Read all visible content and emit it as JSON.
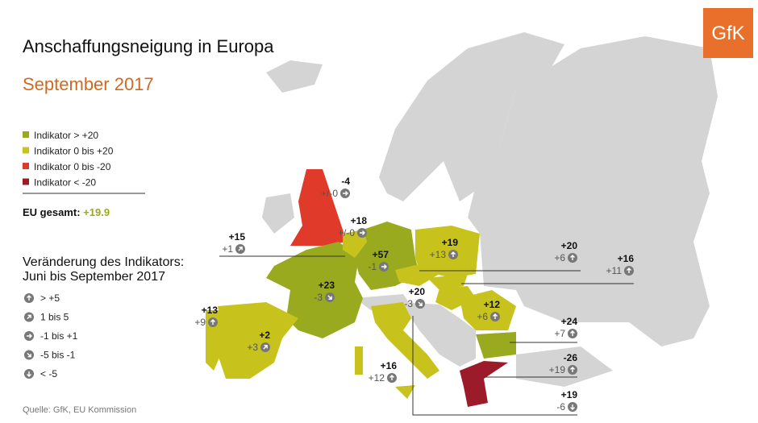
{
  "header": {
    "title": "Anschaffungsneigung in Europa",
    "subtitle": "September 2017",
    "logo": "GfK"
  },
  "legend": [
    "Indikator > +20",
    "Indikator 0 bis +20",
    "Indikator 0 bis -20",
    "Indikator < -20"
  ],
  "eu_total": {
    "label": "EU gesamt:",
    "value": "+19.9"
  },
  "change_legend": {
    "title_lines": [
      "Veränderung des Indikators:",
      "Juni bis September 2017"
    ],
    "items": [
      "> +5",
      "1 bis 5",
      "-1 bis +1",
      "-5 bis -1",
      "< -5"
    ]
  },
  "countries": [
    {
      "value": "-4",
      "change": "+/-0"
    },
    {
      "value": "+18",
      "change": "+/-0"
    },
    {
      "value": "+15",
      "change": "+1"
    },
    {
      "value": "+57",
      "change": "-1"
    },
    {
      "value": "+19",
      "change": "+13"
    },
    {
      "value": "+20",
      "change": "+6"
    },
    {
      "value": "+16",
      "change": "+11"
    },
    {
      "value": "+23",
      "change": "-3"
    },
    {
      "value": "+20",
      "change": "-3"
    },
    {
      "value": "+12",
      "change": "+6"
    },
    {
      "value": "+13",
      "change": "+9"
    },
    {
      "value": "+2",
      "change": "+3"
    },
    {
      "value": "+24",
      "change": "+7"
    },
    {
      "value": "+16",
      "change": "+12"
    },
    {
      "value": "-26",
      "change": "+19"
    },
    {
      "value": "+19",
      "change": "-6"
    }
  ],
  "source": "Quelle: GfK, EU Kommission"
}
